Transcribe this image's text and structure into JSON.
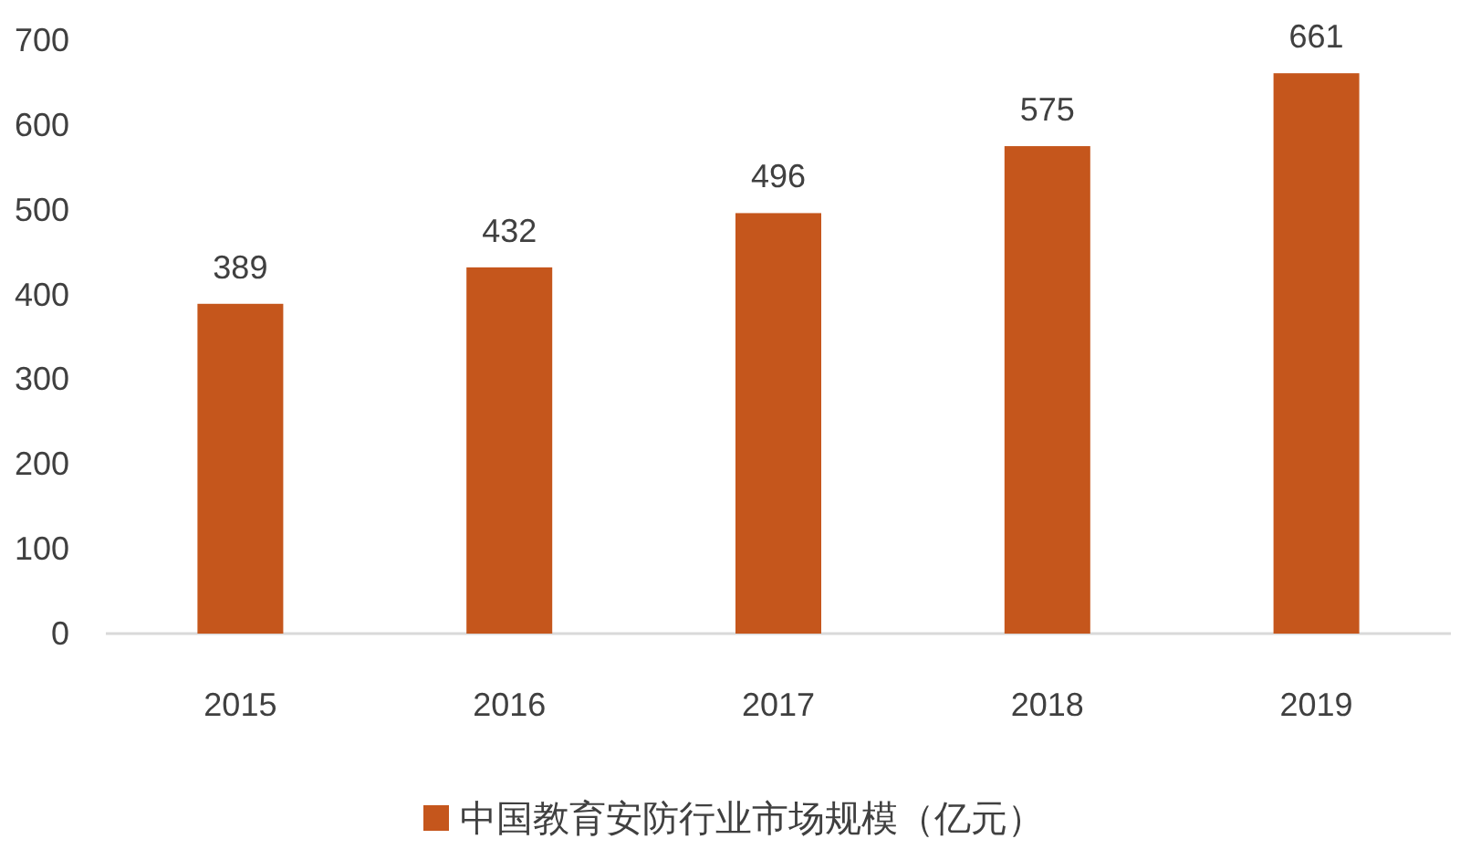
{
  "chart_data": {
    "type": "bar",
    "categories": [
      "2015",
      "2016",
      "2017",
      "2018",
      "2019"
    ],
    "series": [
      {
        "name": "中国教育安防行业市场规模（亿元）",
        "color": "#c5561c",
        "values": [
          389,
          432,
          496,
          575,
          661
        ]
      }
    ],
    "ylim": [
      0,
      700
    ],
    "yticks": [
      0,
      100,
      200,
      300,
      400,
      500,
      600,
      700
    ],
    "data_labels": true,
    "legend": "bottom"
  }
}
